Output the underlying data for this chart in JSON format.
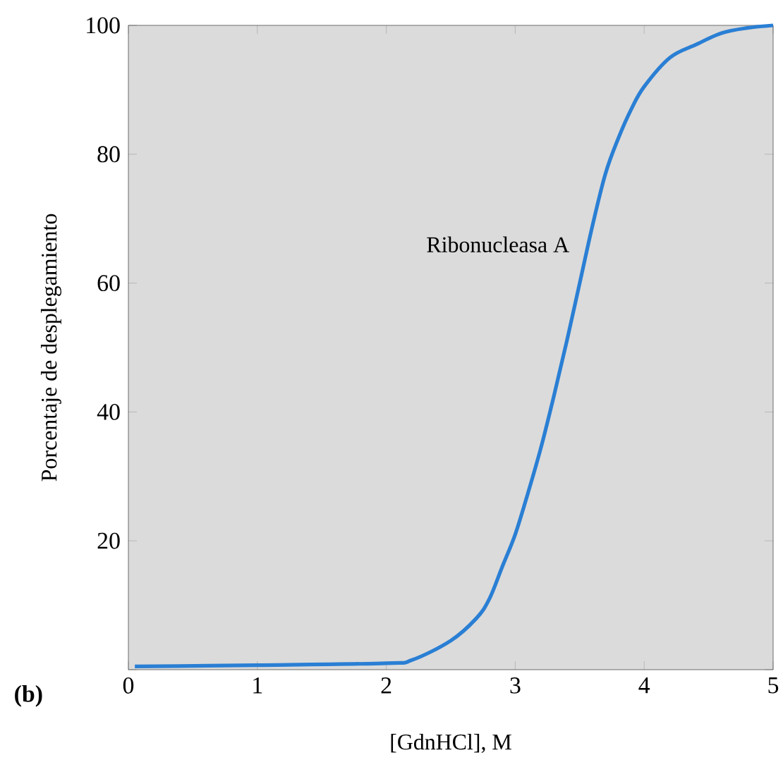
{
  "chart_data": {
    "type": "line",
    "xlabel": "[GdnHCl], M",
    "ylabel": "Porcentaje de desplegamiento",
    "annotations": [
      "(b)"
    ],
    "xlim": [
      0,
      5
    ],
    "ylim": [
      0,
      100
    ],
    "xticks": [
      0,
      1,
      2,
      3,
      4,
      5
    ],
    "yticks": [
      {
        "value": 0,
        "label": null
      },
      20,
      40,
      60,
      80,
      100
    ],
    "legend": false,
    "grid": false,
    "series": [
      {
        "name": "Ribonucleasa A",
        "color": "#2a7fd4",
        "x": [
          0.05,
          1,
          2,
          2.2,
          2.5,
          2.7,
          2.8,
          2.9,
          3.0,
          3.1,
          3.2,
          3.3,
          3.4,
          3.5,
          3.6,
          3.7,
          3.8,
          3.9,
          4.0,
          4.2,
          4.4,
          4.6,
          4.8,
          5
        ],
        "values": [
          0.5,
          0.7,
          1,
          1.5,
          4.5,
          8,
          11,
          16,
          21,
          27.5,
          34.5,
          42.5,
          51,
          60,
          69,
          77,
          82.5,
          87,
          90.5,
          95,
          97,
          98.8,
          99.6,
          100
        ]
      }
    ]
  }
}
